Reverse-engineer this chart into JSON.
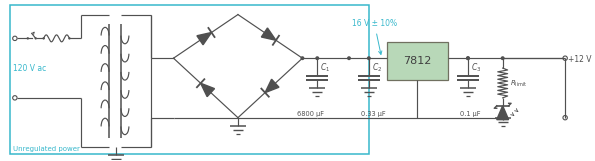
{
  "bg_color": "#ffffff",
  "box_color": "#b8d8b8",
  "cyan_color": "#38b8cc",
  "dark_gray": "#404040",
  "line_color": "#505050",
  "text_120V": "120 V ac",
  "text_unreg": "Unregulated power",
  "text_16V": "16 V ± 10%",
  "text_7812": "7812",
  "text_6800": "6800 μF",
  "text_C1": "$C_1$",
  "text_C2": "$C_2$",
  "text_C3": "$C_3$",
  "text_033": "0.33 μF",
  "text_01": "0.1 μF",
  "text_12V": "+12 V",
  "text_Rlimit": "$R_{\\mathrm{limit}}$",
  "fig_width": 5.95,
  "fig_height": 1.61,
  "dpi": 100
}
